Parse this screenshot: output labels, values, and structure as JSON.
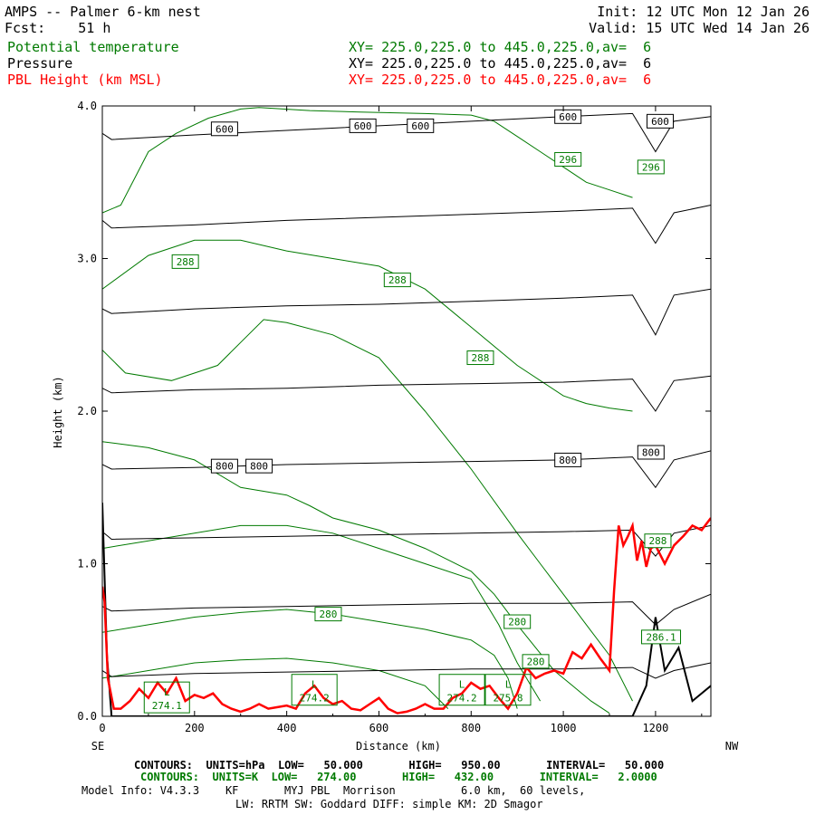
{
  "header": {
    "title_left": "AMPS -- Palmer 6-km nest",
    "forecast_label": "Fcst:    51 h",
    "init": "Init: 12 UTC Mon 12 Jan 26",
    "valid": "Valid: 15 UTC Wed 14 Jan 26",
    "fields": [
      {
        "name": "Potential temperature",
        "xy": "XY= 225.0,225.0 to 445.0,225.0,av=  6",
        "color": "#007a00"
      },
      {
        "name": "Pressure",
        "xy": "XY= 225.0,225.0 to 445.0,225.0,av=  6",
        "color": "#000000"
      },
      {
        "name": "PBL Height (km MSL)",
        "xy": "XY= 225.0,225.0 to 445.0,225.0,av=  6",
        "color": "#ff0000"
      }
    ]
  },
  "axes": {
    "y_label": "Height (km)",
    "x_label": "Distance (km)",
    "left_end": "SE",
    "right_end": "NW"
  },
  "footer": {
    "line1": "CONTOURS:  UNITS=hPa  LOW=   50.000       HIGH=   950.00       INTERVAL=   50.000",
    "line2": "CONTOURS:  UNITS=K  LOW=   274.00       HIGH=   432.00       INTERVAL=   2.0000",
    "line3": "Model Info: V4.3.3    KF       MYJ PBL  Morrison          6.0 km,  60 levels,",
    "line4": "LW: RRTM SW: Goddard DIFF: simple KM: 2D Smagor",
    "line1_color": "#000000",
    "line2_color": "#007a00"
  },
  "chart_data": {
    "type": "line",
    "xlim": [
      0,
      1320
    ],
    "ylim": [
      0,
      4.0
    ],
    "x_ticks": [
      0,
      200,
      400,
      600,
      800,
      1000,
      1200
    ],
    "y_ticks": [
      0.0,
      1.0,
      2.0,
      3.0,
      4.0
    ],
    "x_tick_labels": [
      "0",
      "200",
      "400",
      "600",
      "800",
      "1000",
      "1200"
    ],
    "y_tick_labels": [
      "0.0",
      "1.0",
      "2.0",
      "3.0",
      "4.0"
    ],
    "pressure_isobars": [
      {
        "x": [
          0,
          20,
          200,
          400,
          600,
          800,
          1000,
          1150,
          1200,
          1240,
          1320
        ],
        "y": [
          3.82,
          3.78,
          3.81,
          3.84,
          3.87,
          3.9,
          3.93,
          3.95,
          3.7,
          3.9,
          3.93
        ]
      },
      {
        "x": [
          0,
          20,
          200,
          400,
          600,
          800,
          1000,
          1150,
          1200,
          1240,
          1320
        ],
        "y": [
          3.25,
          3.2,
          3.22,
          3.25,
          3.27,
          3.29,
          3.31,
          3.33,
          3.1,
          3.3,
          3.35
        ]
      },
      {
        "x": [
          0,
          20,
          200,
          400,
          600,
          800,
          1000,
          1150,
          1200,
          1240,
          1320
        ],
        "y": [
          2.67,
          2.64,
          2.67,
          2.69,
          2.7,
          2.72,
          2.74,
          2.76,
          2.5,
          2.76,
          2.8
        ]
      },
      {
        "x": [
          0,
          20,
          200,
          400,
          600,
          800,
          1000,
          1150,
          1200,
          1240,
          1320
        ],
        "y": [
          2.15,
          2.12,
          2.14,
          2.15,
          2.17,
          2.18,
          2.19,
          2.21,
          2.0,
          2.2,
          2.23
        ]
      },
      {
        "x": [
          0,
          20,
          200,
          400,
          600,
          800,
          1000,
          1150,
          1200,
          1240,
          1320
        ],
        "y": [
          1.65,
          1.62,
          1.63,
          1.65,
          1.66,
          1.67,
          1.68,
          1.7,
          1.5,
          1.68,
          1.74
        ]
      },
      {
        "x": [
          0,
          20,
          200,
          400,
          600,
          800,
          1000,
          1150,
          1200,
          1240,
          1320
        ],
        "y": [
          1.21,
          1.16,
          1.17,
          1.18,
          1.19,
          1.2,
          1.21,
          1.22,
          1.05,
          1.2,
          1.25
        ]
      },
      {
        "x": [
          0,
          20,
          200,
          400,
          600,
          800,
          1000,
          1150,
          1200,
          1240,
          1320
        ],
        "y": [
          0.72,
          0.69,
          0.71,
          0.72,
          0.73,
          0.74,
          0.74,
          0.75,
          0.6,
          0.7,
          0.8
        ]
      },
      {
        "x": [
          0,
          20,
          200,
          400,
          600,
          800,
          1000,
          1150,
          1200,
          1240,
          1320
        ],
        "y": [
          0.3,
          0.26,
          0.28,
          0.29,
          0.3,
          0.31,
          0.31,
          0.32,
          0.25,
          0.3,
          0.35
        ]
      },
      {
        "x": [
          0,
          10,
          20,
          200,
          1100,
          1150,
          1180,
          1200,
          1220,
          1250,
          1280,
          1320
        ],
        "y": [
          1.4,
          0.4,
          0.0,
          0.0,
          0.0,
          0.0,
          0.2,
          0.65,
          0.3,
          0.45,
          0.1,
          0.2
        ]
      }
    ],
    "pressure_labels": [
      {
        "x": 265,
        "y": 3.85,
        "text": "600"
      },
      {
        "x": 565,
        "y": 3.87,
        "text": "600"
      },
      {
        "x": 690,
        "y": 3.87,
        "text": "600"
      },
      {
        "x": 1010,
        "y": 3.93,
        "text": "600"
      },
      {
        "x": 1210,
        "y": 3.9,
        "text": "600"
      },
      {
        "x": 265,
        "y": 1.64,
        "text": "800"
      },
      {
        "x": 340,
        "y": 1.64,
        "text": "800"
      },
      {
        "x": 1010,
        "y": 1.68,
        "text": "800"
      },
      {
        "x": 1190,
        "y": 1.73,
        "text": "800"
      }
    ],
    "theta_isentropes": [
      {
        "x": [
          0,
          40,
          100,
          160,
          230,
          300,
          340,
          450,
          560,
          700,
          800,
          850,
          900,
          950,
          1000,
          1050,
          1100,
          1150
        ],
        "y": [
          3.3,
          3.35,
          3.7,
          3.82,
          3.92,
          3.98,
          3.99,
          3.97,
          3.96,
          3.95,
          3.94,
          3.9,
          3.8,
          3.7,
          3.6,
          3.5,
          3.45,
          3.4
        ]
      },
      {
        "x": [
          0,
          100,
          200,
          300,
          400,
          500,
          600,
          700,
          800,
          900,
          1000,
          1050,
          1100,
          1150
        ],
        "y": [
          2.8,
          3.02,
          3.12,
          3.12,
          3.05,
          3.0,
          2.95,
          2.8,
          2.55,
          2.3,
          2.1,
          2.05,
          2.02,
          2.0
        ]
      },
      {
        "x": [
          0,
          50,
          150,
          250,
          300,
          350,
          400,
          500,
          600,
          700,
          800,
          900,
          950,
          1000,
          1050,
          1100,
          1150
        ],
        "y": [
          2.4,
          2.25,
          2.2,
          2.3,
          2.45,
          2.6,
          2.58,
          2.5,
          2.35,
          2.0,
          1.62,
          1.2,
          1.0,
          0.8,
          0.6,
          0.4,
          0.1
        ]
      },
      {
        "x": [
          0,
          100,
          200,
          300,
          400,
          450,
          500,
          600,
          700,
          800,
          850,
          900,
          940,
          980,
          1020,
          1060,
          1100
        ],
        "y": [
          1.8,
          1.76,
          1.68,
          1.5,
          1.45,
          1.38,
          1.3,
          1.22,
          1.1,
          0.95,
          0.8,
          0.6,
          0.45,
          0.3,
          0.2,
          0.1,
          0.02
        ]
      },
      {
        "x": [
          0,
          100,
          200,
          300,
          400,
          500,
          600,
          700,
          800,
          860,
          900,
          950
        ],
        "y": [
          1.1,
          1.15,
          1.2,
          1.25,
          1.25,
          1.2,
          1.1,
          1.0,
          0.9,
          0.6,
          0.35,
          0.1
        ]
      },
      {
        "x": [
          0,
          100,
          200,
          300,
          400,
          500,
          600,
          700,
          800,
          850,
          880,
          900
        ],
        "y": [
          0.55,
          0.6,
          0.65,
          0.68,
          0.7,
          0.67,
          0.62,
          0.57,
          0.5,
          0.4,
          0.25,
          0.05
        ]
      },
      {
        "x": [
          0,
          100,
          200,
          300,
          400,
          500,
          600,
          700,
          750
        ],
        "y": [
          0.25,
          0.3,
          0.35,
          0.37,
          0.38,
          0.35,
          0.3,
          0.2,
          0.05
        ]
      }
    ],
    "theta_labels": [
      {
        "x": 1010,
        "y": 3.65,
        "text": "296"
      },
      {
        "x": 1190,
        "y": 3.6,
        "text": "296"
      },
      {
        "x": 180,
        "y": 2.98,
        "text": "288"
      },
      {
        "x": 640,
        "y": 2.86,
        "text": "288"
      },
      {
        "x": 820,
        "y": 2.35,
        "text": "288"
      },
      {
        "x": 490,
        "y": 0.67,
        "text": "280"
      },
      {
        "x": 900,
        "y": 0.62,
        "text": "280"
      },
      {
        "x": 940,
        "y": 0.36,
        "text": "280"
      },
      {
        "x": 1205,
        "y": 1.15,
        "text": "288"
      },
      {
        "x": 1212,
        "y": 0.52,
        "text": "286.1"
      }
    ],
    "lows": [
      {
        "x": 140,
        "y": 0.1,
        "text": "274.1"
      },
      {
        "x": 460,
        "y": 0.15,
        "text": "274.2"
      },
      {
        "x": 780,
        "y": 0.15,
        "text": "274.2"
      },
      {
        "x": 880,
        "y": 0.15,
        "text": "275.8"
      }
    ],
    "pbl_height": {
      "x": [
        0,
        5,
        12,
        25,
        40,
        60,
        80,
        100,
        120,
        140,
        160,
        180,
        200,
        220,
        240,
        260,
        280,
        300,
        320,
        340,
        360,
        380,
        400,
        420,
        440,
        460,
        480,
        500,
        520,
        540,
        560,
        580,
        600,
        620,
        640,
        660,
        680,
        700,
        720,
        740,
        760,
        780,
        800,
        820,
        840,
        860,
        880,
        900,
        920,
        940,
        960,
        980,
        1000,
        1020,
        1040,
        1060,
        1080,
        1100,
        1110,
        1120,
        1130,
        1140,
        1150,
        1160,
        1170,
        1180,
        1190,
        1200,
        1220,
        1240,
        1260,
        1280,
        1300,
        1320
      ],
      "y": [
        0.85,
        0.75,
        0.25,
        0.05,
        0.05,
        0.1,
        0.18,
        0.12,
        0.22,
        0.15,
        0.25,
        0.1,
        0.14,
        0.12,
        0.15,
        0.08,
        0.05,
        0.03,
        0.05,
        0.08,
        0.05,
        0.06,
        0.07,
        0.05,
        0.15,
        0.2,
        0.12,
        0.08,
        0.1,
        0.05,
        0.04,
        0.08,
        0.12,
        0.05,
        0.02,
        0.03,
        0.05,
        0.08,
        0.05,
        0.05,
        0.12,
        0.15,
        0.22,
        0.18,
        0.2,
        0.12,
        0.05,
        0.15,
        0.32,
        0.25,
        0.28,
        0.3,
        0.28,
        0.42,
        0.38,
        0.47,
        0.38,
        0.3,
        0.82,
        1.25,
        1.12,
        1.18,
        1.25,
        1.02,
        1.15,
        0.98,
        1.1,
        1.12,
        1.0,
        1.12,
        1.18,
        1.25,
        1.22,
        1.3
      ]
    }
  }
}
